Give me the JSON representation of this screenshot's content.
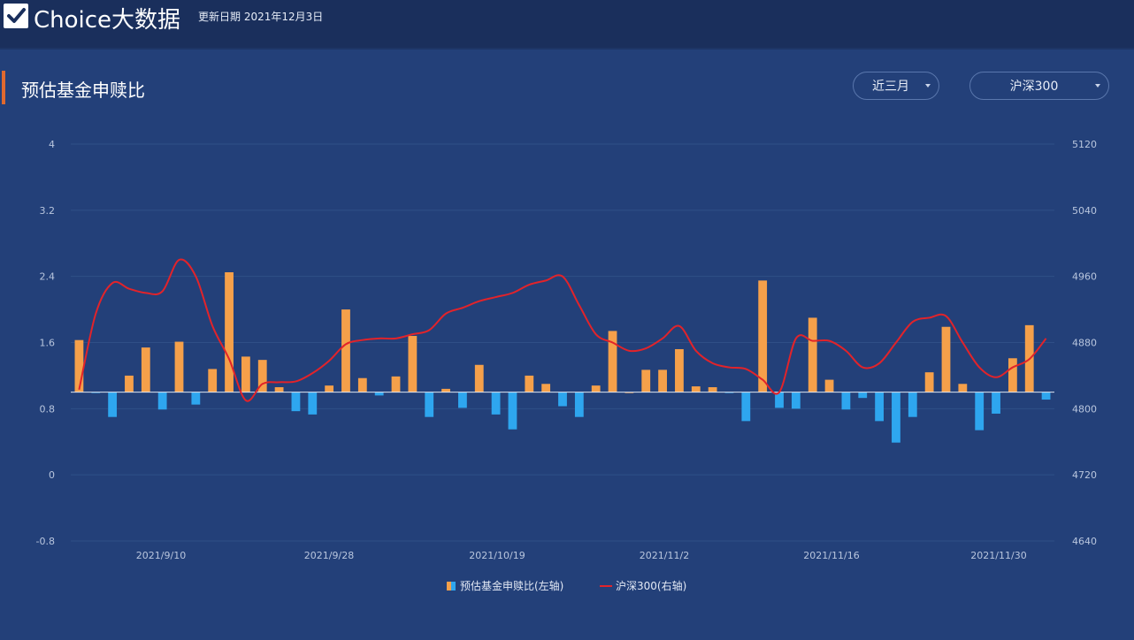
{
  "header": {
    "brand": "Choice大数据",
    "update_date": "更新日期 2021年12月3日"
  },
  "panel": {
    "title": "预估基金申赎比",
    "period_dropdown": "近三月",
    "index_dropdown": "沪深300"
  },
  "colors": {
    "positive_bar": "#f5a04a",
    "negative_bar": "#2ea6ef",
    "line": "#e2232a",
    "accent": "#e0692f"
  },
  "icons": [
    "checkmark-icon",
    "chevron-down-icon"
  ],
  "chart_data": {
    "type": "bar",
    "title": "",
    "grid": true,
    "legend_position": "bottom-center",
    "y_left": {
      "ticks": [
        "4",
        "3.2",
        "2.4",
        "1.6",
        "0.8",
        "0",
        "-0.8"
      ],
      "range": [
        -0.8,
        4
      ],
      "baseline": 1.0
    },
    "y_right": {
      "ticks": [
        "5120",
        "5040",
        "4960",
        "4880",
        "4800",
        "4720",
        "4640"
      ],
      "range": [
        4640,
        5120
      ]
    },
    "x_tick_labels": [
      "2021/9/10",
      "2021/9/28",
      "2021/10/19",
      "2021/11/2",
      "2021/11/16",
      "2021/11/30"
    ],
    "series": [
      {
        "name": "预估基金申赎比(左轴)",
        "axis": "left",
        "kind": "bar",
        "values": [
          1.63,
          0.99,
          0.7,
          1.2,
          1.54,
          0.79,
          1.61,
          0.85,
          1.28,
          2.45,
          1.43,
          1.39,
          1.06,
          0.77,
          0.73,
          1.08,
          2.0,
          1.17,
          0.96,
          1.19,
          1.68,
          0.7,
          1.04,
          0.81,
          1.33,
          0.73,
          0.55,
          1.2,
          1.1,
          0.83,
          0.7,
          1.08,
          1.74,
          1.0,
          1.27,
          1.27,
          1.52,
          1.07,
          1.06,
          0.99,
          0.65,
          2.35,
          0.81,
          0.8,
          1.9,
          1.15,
          0.79,
          0.93,
          0.65,
          0.39,
          0.7,
          1.24,
          1.79,
          1.1,
          0.54,
          0.74,
          1.41,
          1.81,
          0.91
        ]
      },
      {
        "name": "沪深300(右轴)",
        "axis": "right",
        "kind": "line",
        "values": [
          4823,
          4915,
          4952,
          4945,
          4940,
          4942,
          4980,
          4960,
          4900,
          4860,
          4810,
          4830,
          4832,
          4833,
          4843,
          4858,
          4878,
          4883,
          4885,
          4885,
          4890,
          4895,
          4915,
          4922,
          4930,
          4935,
          4940,
          4950,
          4955,
          4960,
          4925,
          4890,
          4880,
          4870,
          4873,
          4885,
          4900,
          4870,
          4855,
          4850,
          4848,
          4835,
          4820,
          4885,
          4882,
          4882,
          4870,
          4850,
          4855,
          4880,
          4905,
          4910,
          4912,
          4880,
          4850,
          4838,
          4850,
          4860,
          4885
        ]
      }
    ]
  }
}
